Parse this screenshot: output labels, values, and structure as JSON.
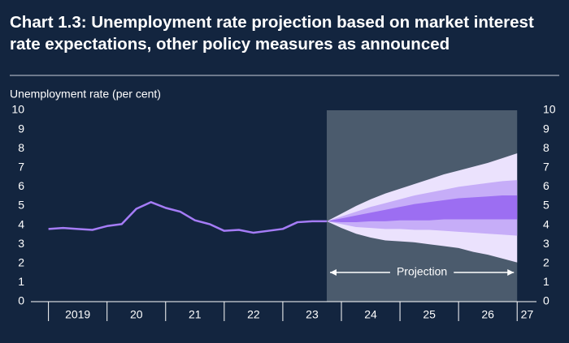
{
  "chart_data": {
    "type": "fan",
    "title": "Chart 1.3: Unemployment rate projection based on market interest rate expectations, other policy measures as announced",
    "ylabel": "Unemployment rate (per cent)",
    "ylim": [
      0,
      10
    ],
    "yticks": [
      0,
      1,
      2,
      3,
      4,
      5,
      6,
      7,
      8,
      9,
      10
    ],
    "xlim": [
      2018.7,
      2027.33
    ],
    "xtick_marks": [
      2019,
      2020,
      2021,
      2022,
      2023,
      2024,
      2025,
      2026,
      2027
    ],
    "xticks": [
      {
        "value": 2019.5,
        "label": "2019"
      },
      {
        "value": 2020.5,
        "label": "20"
      },
      {
        "value": 2021.5,
        "label": "21"
      },
      {
        "value": 2022.5,
        "label": "22"
      },
      {
        "value": 2023.5,
        "label": "23"
      },
      {
        "value": 2024.5,
        "label": "24"
      },
      {
        "value": 2025.5,
        "label": "25"
      },
      {
        "value": 2026.5,
        "label": "26"
      },
      {
        "value": 2027.17,
        "label": "27"
      }
    ],
    "projection_span": [
      2023.75,
      2027.0
    ],
    "projection_label": "Projection",
    "color": "#a57cf7",
    "x": [
      2019.0,
      2019.25,
      2019.5,
      2019.75,
      2020.0,
      2020.25,
      2020.5,
      2020.75,
      2021.0,
      2021.25,
      2021.5,
      2021.75,
      2022.0,
      2022.25,
      2022.5,
      2022.75,
      2023.0,
      2023.25,
      2023.5,
      2023.75
    ],
    "values": [
      3.8,
      3.85,
      3.8,
      3.75,
      3.95,
      4.05,
      4.85,
      5.2,
      4.9,
      4.7,
      4.25,
      4.05,
      3.7,
      3.75,
      3.6,
      3.7,
      3.8,
      4.15,
      4.2,
      4.2
    ],
    "fan_x": [
      2023.75,
      2024.0,
      2024.25,
      2024.5,
      2024.75,
      2025.0,
      2025.25,
      2025.5,
      2025.75,
      2026.0,
      2026.25,
      2026.5,
      2026.75,
      2027.0
    ],
    "fan": [
      {
        "color": "#ebe2fd",
        "upper": [
          4.2,
          4.6,
          5.0,
          5.35,
          5.65,
          5.9,
          6.15,
          6.4,
          6.65,
          6.85,
          7.05,
          7.25,
          7.5,
          7.75
        ],
        "lower": [
          4.2,
          3.85,
          3.55,
          3.35,
          3.2,
          3.15,
          3.1,
          3.0,
          2.9,
          2.8,
          2.6,
          2.45,
          2.25,
          2.05
        ]
      },
      {
        "color": "#c6adf8",
        "upper": [
          4.2,
          4.45,
          4.7,
          4.95,
          5.15,
          5.35,
          5.55,
          5.7,
          5.85,
          6.0,
          6.1,
          6.2,
          6.3,
          6.35
        ],
        "lower": [
          4.2,
          4.05,
          3.9,
          3.85,
          3.8,
          3.8,
          3.75,
          3.75,
          3.7,
          3.65,
          3.6,
          3.55,
          3.5,
          3.45
        ]
      },
      {
        "color": "#9c6ef2",
        "upper": [
          4.2,
          4.35,
          4.5,
          4.65,
          4.8,
          4.95,
          5.1,
          5.2,
          5.3,
          5.4,
          5.45,
          5.5,
          5.55,
          5.55
        ],
        "lower": [
          4.2,
          4.15,
          4.15,
          4.2,
          4.2,
          4.25,
          4.25,
          4.25,
          4.3,
          4.3,
          4.3,
          4.3,
          4.3,
          4.3
        ]
      }
    ]
  }
}
